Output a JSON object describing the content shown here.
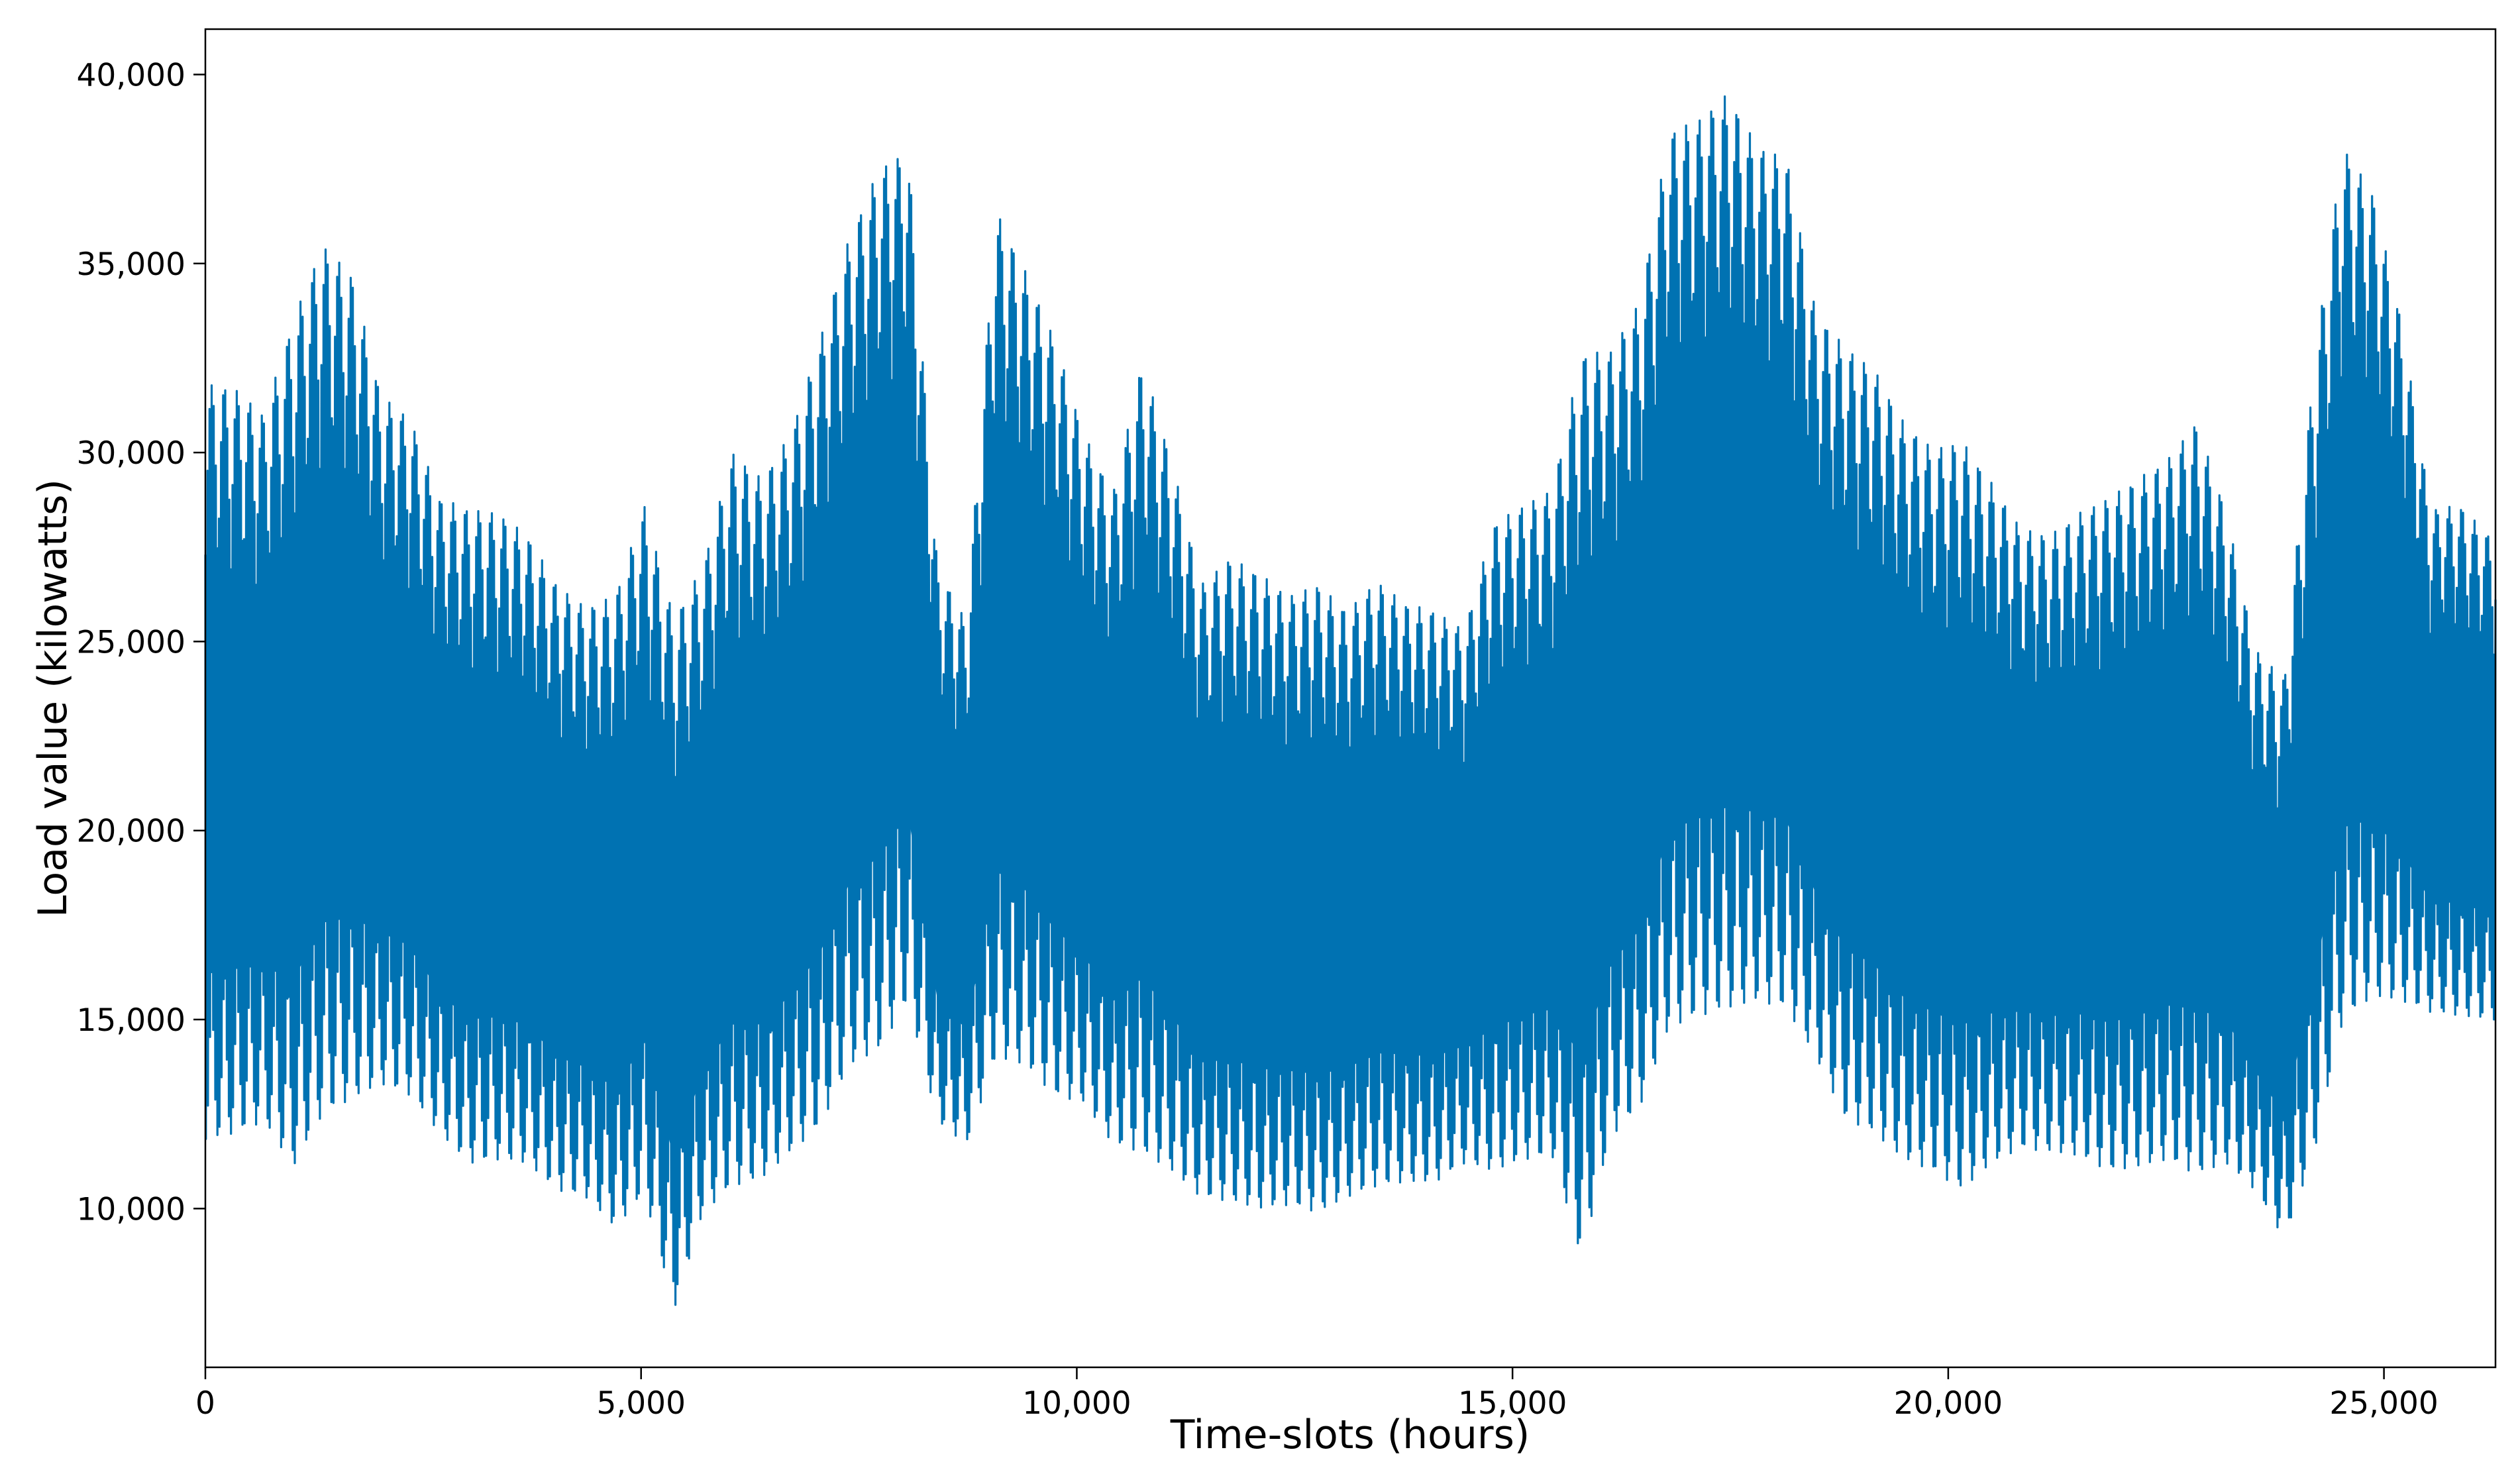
{
  "chart_data": {
    "type": "line",
    "title": "",
    "xlabel": "Time-slots (hours)",
    "ylabel": "Load value  (kilowatts)",
    "xlim": [
      0,
      26280
    ],
    "ylim": [
      5800,
      41200
    ],
    "xticks": [
      0,
      5000,
      10000,
      15000,
      20000,
      25000
    ],
    "xtick_labels": [
      "0",
      "5,000",
      "10,000",
      "15,000",
      "20,000",
      "25,000"
    ],
    "yticks": [
      10000,
      15000,
      20000,
      25000,
      30000,
      35000,
      40000
    ],
    "ytick_labels": [
      "10,000",
      "15,000",
      "20,000",
      "25,000",
      "30,000",
      "35,000",
      "40,000"
    ],
    "grid": false,
    "legend": "none",
    "line_color": "#0072b2",
    "series": [
      {
        "sampling": "approximate per-week envelope of hourly load (x = week start hour, values read from the plot)",
        "x": [
          0,
          336,
          672,
          1008,
          1344,
          1680,
          2016,
          2352,
          2688,
          3024,
          3360,
          3696,
          4032,
          4368,
          4704,
          5040,
          5376,
          5712,
          6048,
          6384,
          6720,
          7056,
          7392,
          7728,
          8064,
          8400,
          8736,
          9072,
          9408,
          9744,
          10080,
          10416,
          10752,
          11088,
          11424,
          11760,
          12096,
          12432,
          12768,
          13104,
          13440,
          13776,
          14112,
          14448,
          14784,
          15120,
          15456,
          15792,
          16128,
          16464,
          16800,
          17136,
          17472,
          17808,
          18144,
          18480,
          18816,
          19152,
          19488,
          19824,
          20160,
          20496,
          20832,
          21168,
          21504,
          21840,
          22176,
          22512,
          22848,
          23184,
          23520,
          23856,
          24192,
          24528,
          24864,
          25200,
          25536,
          25872,
          26208
        ],
        "max": [
          31800,
          31700,
          31000,
          33500,
          35500,
          34700,
          31500,
          30900,
          28800,
          28500,
          28400,
          27800,
          26500,
          25900,
          26200,
          28600,
          25600,
          27000,
          30000,
          29300,
          30500,
          33000,
          35700,
          37500,
          38000,
          27000,
          25500,
          36400,
          34800,
          33000,
          30500,
          28900,
          32400,
          29800,
          26500,
          27200,
          26800,
          26200,
          26500,
          25800,
          26600,
          26000,
          25800,
          25300,
          28100,
          28600,
          29000,
          32600,
          32700,
          34000,
          38500,
          38800,
          39500,
          38100,
          37800,
          33700,
          32800,
          32200,
          30800,
          30100,
          30300,
          29200,
          28000,
          27800,
          28400,
          28800,
          29300,
          29800,
          30800,
          28500,
          24800,
          24000,
          32200,
          38100,
          36900,
          33500,
          28500,
          28600,
          27800
        ],
        "min": [
          11800,
          12000,
          12300,
          11100,
          12500,
          12900,
          13300,
          13000,
          12000,
          11200,
          11300,
          11200,
          10500,
          10300,
          9500,
          10400,
          7300,
          9900,
          10600,
          10800,
          11500,
          12200,
          13800,
          14200,
          15500,
          12300,
          11700,
          14000,
          13800,
          13000,
          12800,
          11700,
          11500,
          11000,
          10300,
          10200,
          10000,
          10100,
          9900,
          10300,
          10600,
          10700,
          10700,
          11200,
          11000,
          11300,
          11400,
          8700,
          11900,
          12700,
          14800,
          15100,
          15300,
          15500,
          15300,
          14000,
          12400,
          12000,
          11300,
          11000,
          10500,
          11200,
          11600,
          11500,
          11400,
          11000,
          11100,
          11300,
          10900,
          11200,
          10500,
          9200,
          11400,
          15000,
          15600,
          15500,
          15200,
          15100,
          15000
        ]
      }
    ]
  }
}
